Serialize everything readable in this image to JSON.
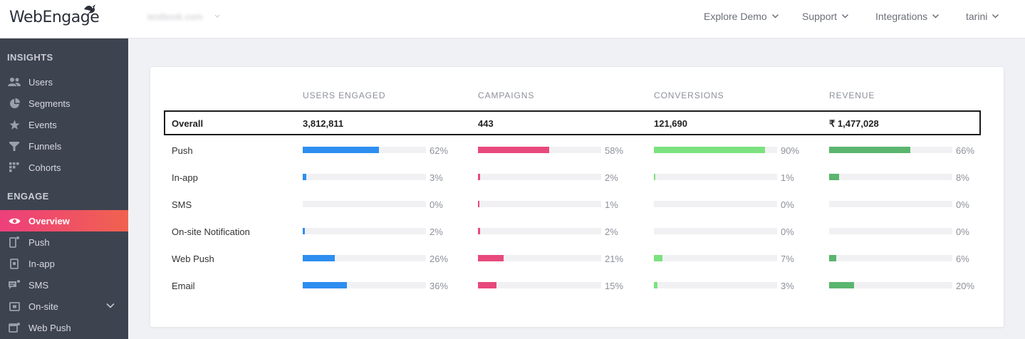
{
  "app": {
    "logo_text": "WebEngage",
    "account": "testbook.com"
  },
  "topnav": [
    {
      "label": "Explore Demo"
    },
    {
      "label": "Support"
    },
    {
      "label": "Integrations"
    },
    {
      "label": "tarini"
    }
  ],
  "sidebar": {
    "insights_title": "INSIGHTS",
    "insights": [
      {
        "label": "Users",
        "icon": "users-icon"
      },
      {
        "label": "Segments",
        "icon": "pie-icon"
      },
      {
        "label": "Events",
        "icon": "star-icon"
      },
      {
        "label": "Funnels",
        "icon": "funnel-icon"
      },
      {
        "label": "Cohorts",
        "icon": "grid-icon"
      }
    ],
    "engage_title": "ENGAGE",
    "engage": [
      {
        "label": "Overview",
        "icon": "eye-icon",
        "active": true
      },
      {
        "label": "Push",
        "icon": "mobile-icon"
      },
      {
        "label": "In-app",
        "icon": "inapp-icon"
      },
      {
        "label": "SMS",
        "icon": "chat-icon"
      },
      {
        "label": "On-site",
        "icon": "onsite-icon",
        "expandable": true
      },
      {
        "label": "Web Push",
        "icon": "browser-icon"
      }
    ]
  },
  "table": {
    "columns": [
      "USERS ENGAGED",
      "CAMPAIGNS",
      "CONVERSIONS",
      "REVENUE"
    ],
    "colors": [
      "#2d8ef0",
      "#e8497c",
      "#7be27f",
      "#5ab56e"
    ],
    "overall": {
      "label": "Overall",
      "values": [
        "3,812,811",
        "443",
        "121,690",
        "₹ 1,477,028"
      ]
    },
    "rows": [
      {
        "label": "Push",
        "pct": [
          62,
          58,
          90,
          66
        ]
      },
      {
        "label": "In-app",
        "pct": [
          3,
          2,
          1,
          8
        ]
      },
      {
        "label": "SMS",
        "pct": [
          0,
          1,
          0,
          0
        ]
      },
      {
        "label": "On-site Notification",
        "pct": [
          2,
          2,
          0,
          0
        ]
      },
      {
        "label": "Web Push",
        "pct": [
          26,
          21,
          7,
          6
        ]
      },
      {
        "label": "Email",
        "pct": [
          36,
          15,
          3,
          20
        ]
      }
    ]
  }
}
